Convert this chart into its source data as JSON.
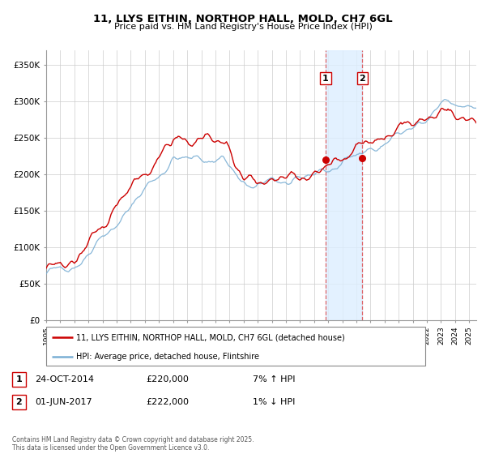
{
  "title": "11, LLYS EITHIN, NORTHOP HALL, MOLD, CH7 6GL",
  "subtitle": "Price paid vs. HM Land Registry's House Price Index (HPI)",
  "legend_line1": "11, LLYS EITHIN, NORTHOP HALL, MOLD, CH7 6GL (detached house)",
  "legend_line2": "HPI: Average price, detached house, Flintshire",
  "transaction1_date": "24-OCT-2014",
  "transaction1_price": "£220,000",
  "transaction1_hpi": "7% ↑ HPI",
  "transaction2_date": "01-JUN-2017",
  "transaction2_price": "£222,000",
  "transaction2_hpi": "1% ↓ HPI",
  "copyright": "Contains HM Land Registry data © Crown copyright and database right 2025.\nThis data is licensed under the Open Government Licence v3.0.",
  "xlim_start": 1995.0,
  "xlim_end": 2025.5,
  "ylim_min": 0,
  "ylim_max": 370000,
  "transaction1_x": 2014.81,
  "transaction1_y": 220000,
  "transaction2_x": 2017.42,
  "transaction2_y": 222000,
  "shade_x1": 2014.81,
  "shade_x2": 2017.42,
  "line_color_red": "#cc0000",
  "line_color_blue": "#7bafd4",
  "shade_color": "#ddeeff",
  "dot_color": "#cc0000",
  "grid_color": "#cccccc",
  "bg_color": "#ffffff",
  "yticks": [
    0,
    50000,
    100000,
    150000,
    200000,
    250000,
    300000,
    350000
  ],
  "ytick_labels": [
    "£0",
    "£50K",
    "£100K",
    "£150K",
    "£200K",
    "£250K",
    "£300K",
    "£350K"
  ]
}
